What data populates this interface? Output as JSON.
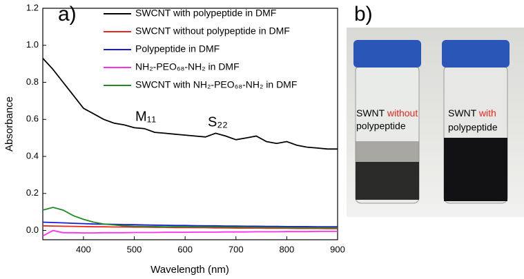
{
  "chart_data": {
    "type": "line",
    "x_label": "Wavelength (nm)",
    "y_label": "Absorbance",
    "xlim": [
      320,
      900
    ],
    "xticks": [
      400,
      500,
      600,
      700,
      800,
      900
    ],
    "ylim": [
      -0.05,
      1.2
    ],
    "yticks": [
      {
        "value": 0,
        "label": "0.0"
      },
      0.2,
      0.4,
      0.6,
      0.8,
      {
        "value": 1,
        "label": "1.0"
      },
      1.2
    ],
    "x": [
      320,
      340,
      360,
      380,
      400,
      420,
      440,
      460,
      480,
      500,
      520,
      540,
      560,
      580,
      600,
      620,
      640,
      660,
      680,
      700,
      720,
      740,
      760,
      780,
      800,
      820,
      840,
      860,
      880,
      900
    ],
    "series": [
      {
        "name": "SWCNT with polypeptide in DMF",
        "color": "#000000",
        "values": [
          0.93,
          0.87,
          0.8,
          0.73,
          0.66,
          0.63,
          0.6,
          0.58,
          0.57,
          0.555,
          0.55,
          0.53,
          0.525,
          0.52,
          0.515,
          0.51,
          0.505,
          0.525,
          0.51,
          0.49,
          0.5,
          0.51,
          0.48,
          0.47,
          0.48,
          0.46,
          0.45,
          0.445,
          0.44,
          0.44
        ]
      },
      {
        "name": "SWCNT without polypeptide in DMF",
        "color": "#e8261c",
        "values": [
          0.025,
          0.024,
          0.023,
          0.022,
          0.021,
          0.02,
          0.02,
          0.019,
          0.019,
          0.018,
          0.018,
          0.017,
          0.017,
          0.016,
          0.016,
          0.015,
          0.015,
          0.014,
          0.014,
          0.013,
          0.013,
          0.013,
          0.012,
          0.012,
          0.012,
          0.011,
          0.011,
          0.011,
          0.01,
          0.01
        ]
      },
      {
        "name": "Polypeptide in DMF",
        "color": "#1a1ad6",
        "values": [
          0.045,
          0.043,
          0.041,
          0.039,
          0.037,
          0.035,
          0.034,
          0.033,
          0.032,
          0.031,
          0.03,
          0.029,
          0.028,
          0.027,
          0.027,
          0.026,
          0.025,
          0.025,
          0.024,
          0.024,
          0.023,
          0.023,
          0.022,
          0.022,
          0.021,
          0.021,
          0.021,
          0.02,
          0.02,
          0.02
        ]
      },
      {
        "name": "NH₂-PEO₆₈-NH₂ in DMF",
        "color": "#ff2ef0",
        "values": [
          -0.03,
          0.0,
          -0.012,
          -0.012,
          -0.013,
          -0.013,
          -0.012,
          -0.012,
          -0.012,
          -0.011,
          -0.011,
          -0.011,
          -0.01,
          -0.01,
          -0.01,
          -0.009,
          -0.009,
          -0.009,
          -0.008,
          -0.008,
          -0.008,
          -0.007,
          -0.007,
          -0.007,
          -0.006,
          -0.006,
          -0.006,
          -0.005,
          -0.005,
          -0.005
        ]
      },
      {
        "name": "SWCNT with NH₂-PEO₆₈-NH₂ in DMF",
        "color": "#1f8a1f",
        "values": [
          0.11,
          0.125,
          0.11,
          0.08,
          0.06,
          0.045,
          0.035,
          0.03,
          0.025,
          0.023,
          0.022,
          0.021,
          0.02,
          0.02,
          0.02,
          0.019,
          0.019,
          0.019,
          0.018,
          0.018,
          0.018,
          0.017,
          0.017,
          0.017,
          0.016,
          0.016,
          0.016,
          0.015,
          0.015,
          0.015
        ]
      }
    ],
    "annotations": [
      {
        "text": "a)"
      },
      {
        "text": "M₁₁"
      },
      {
        "text": "S₂₂"
      }
    ]
  },
  "photo": {
    "label": "b)",
    "vials": [
      {
        "prefix": "SWNT",
        "highlight": "without",
        "suffix": "polypeptide"
      },
      {
        "prefix": "SWNT",
        "highlight": "with",
        "suffix": "polypeptide"
      }
    ]
  }
}
